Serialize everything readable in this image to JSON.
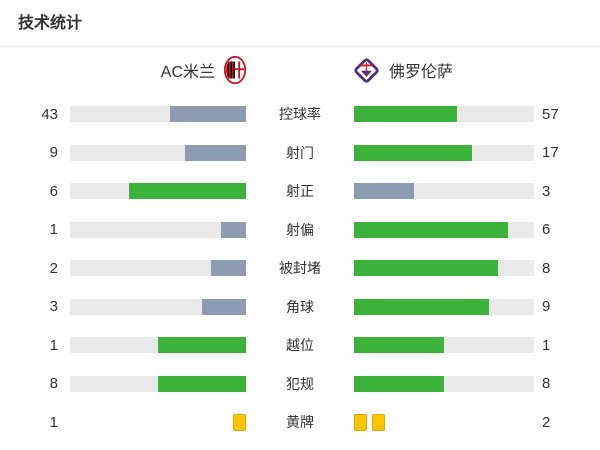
{
  "title": "技术统计",
  "teams": {
    "home": {
      "name": "AC米兰",
      "badge": "ac-milan-crest"
    },
    "away": {
      "name": "佛罗伦萨",
      "badge": "fiorentina-crest"
    }
  },
  "colors": {
    "win_fill": "#3bb33b",
    "lose_fill": "#8c9cb1",
    "bar_bg": "#e9e9e9",
    "yellow_card": "#fdc500",
    "yellow_card_border": "#e2a600",
    "text": "#333333",
    "milan_red": "#cf1020",
    "milan_black": "#121212",
    "fiorentina_purple": "#5b2b82",
    "giglio_red": "#d8232a"
  },
  "rows": [
    {
      "label": "控球率",
      "home": 43,
      "away": 57,
      "home_pct": 43,
      "away_pct": 57,
      "home_color": "lose",
      "away_color": "win"
    },
    {
      "label": "射门",
      "home": 9,
      "away": 17,
      "home_pct": 34.6,
      "away_pct": 65.4,
      "home_color": "lose",
      "away_color": "win"
    },
    {
      "label": "射正",
      "home": 6,
      "away": 3,
      "home_pct": 66.7,
      "away_pct": 33.3,
      "home_color": "win",
      "away_color": "lose"
    },
    {
      "label": "射偏",
      "home": 1,
      "away": 6,
      "home_pct": 14.3,
      "away_pct": 85.7,
      "home_color": "lose",
      "away_color": "win"
    },
    {
      "label": "被封堵",
      "home": 2,
      "away": 8,
      "home_pct": 20,
      "away_pct": 80,
      "home_color": "lose",
      "away_color": "win"
    },
    {
      "label": "角球",
      "home": 3,
      "away": 9,
      "home_pct": 25,
      "away_pct": 75,
      "home_color": "lose",
      "away_color": "win"
    },
    {
      "label": "越位",
      "home": 1,
      "away": 1,
      "home_pct": 50,
      "away_pct": 50,
      "home_color": "win",
      "away_color": "win"
    },
    {
      "label": "犯规",
      "home": 8,
      "away": 8,
      "home_pct": 50,
      "away_pct": 50,
      "home_color": "win",
      "away_color": "win"
    },
    {
      "label": "黄牌",
      "home": 1,
      "away": 2,
      "type": "cards"
    }
  ],
  "chart_data": {
    "type": "bar",
    "orientation": "horizontal-diverging",
    "title": "技术统计",
    "categories": [
      "控球率",
      "射门",
      "射正",
      "射偏",
      "被封堵",
      "角球",
      "越位",
      "犯规",
      "黄牌"
    ],
    "series": [
      {
        "name": "AC米兰",
        "values": [
          43,
          9,
          6,
          1,
          2,
          3,
          1,
          8,
          1
        ]
      },
      {
        "name": "佛罗伦萨",
        "values": [
          57,
          17,
          3,
          6,
          8,
          9,
          1,
          8,
          2
        ]
      }
    ],
    "value_format": "控球率 in percent, all others are counts",
    "legend_position": "top (team names with crests)",
    "grid": false,
    "bar_style": "paired bars fill toward center; higher side green #3bb33b, lower side slate #8c9cb1, ties both green; 黄牌 row drawn as yellow card icons instead of bars"
  }
}
